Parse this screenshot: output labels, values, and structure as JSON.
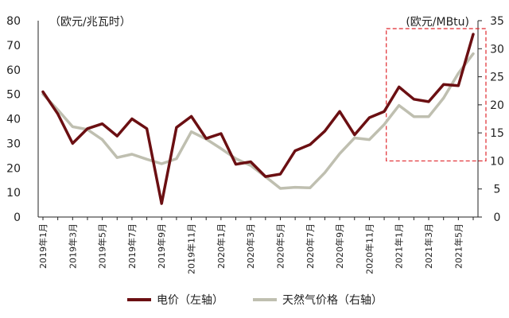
{
  "chart_data": {
    "type": "line",
    "left_axis_unit": "（欧元/兆瓦时）",
    "right_axis_unit": "(欧元/MBtu)",
    "left_ylim": [
      0,
      80
    ],
    "left_ticks": [
      "0",
      "10",
      "20",
      "30",
      "40",
      "50",
      "60",
      "70",
      "80"
    ],
    "right_ylim": [
      0,
      35
    ],
    "right_ticks": [
      "0",
      "5",
      "10",
      "15",
      "20",
      "25",
      "30",
      "35"
    ],
    "x": [
      "2019-01",
      "2019-02",
      "2019-03",
      "2019-04",
      "2019-05",
      "2019-06",
      "2019-07",
      "2019-08",
      "2019-09",
      "2019-10",
      "2019-11",
      "2019-12",
      "2020-01",
      "2020-02",
      "2020-03",
      "2020-04",
      "2020-05",
      "2020-06",
      "2020-07",
      "2020-08",
      "2020-09",
      "2020-10",
      "2020-11",
      "2020-12",
      "2021-01",
      "2021-02",
      "2021-03",
      "2021-04",
      "2021-05",
      "2021-06"
    ],
    "x_tick_labels": [
      "2019年1月",
      "2019年3月",
      "2019年5月",
      "2019年7月",
      "2019年9月",
      "2019年11月",
      "2020年1月",
      "2020年3月",
      "2020年5月",
      "2020年7月",
      "2020年9月",
      "2020年11月",
      "2021年1月",
      "2021年3月",
      "2021年5月"
    ],
    "series": [
      {
        "name": "电价（左轴）",
        "axis": "left",
        "color": "#6b0f12",
        "values": [
          51,
          42,
          30,
          36,
          38,
          33,
          40,
          36,
          5.5,
          36.5,
          41,
          32,
          34,
          21.5,
          22.5,
          16.5,
          17.5,
          27,
          29.5,
          35,
          43,
          33.5,
          40.5,
          43,
          53,
          48,
          47,
          54,
          53.5,
          74.5
        ]
      },
      {
        "name": "天然气价格（右轴）",
        "axis": "right",
        "color": "#bfbfb0",
        "values": [
          21.9,
          19.1,
          16.1,
          15.6,
          13.8,
          10.6,
          11.2,
          10.3,
          9.5,
          10.4,
          15.2,
          13.9,
          12.2,
          10.4,
          9.2,
          7.2,
          5.1,
          5.3,
          5.2,
          7.9,
          11.3,
          14.1,
          13.8,
          16.5,
          19.9,
          17.9,
          17.9,
          21.2,
          25.6,
          29.1
        ]
      }
    ],
    "grid": false,
    "legend_position": "bottom-center",
    "highlight_box": {
      "from": "2021-01",
      "to": "2021-06",
      "style": "dashed",
      "color": "#e0282e"
    }
  }
}
